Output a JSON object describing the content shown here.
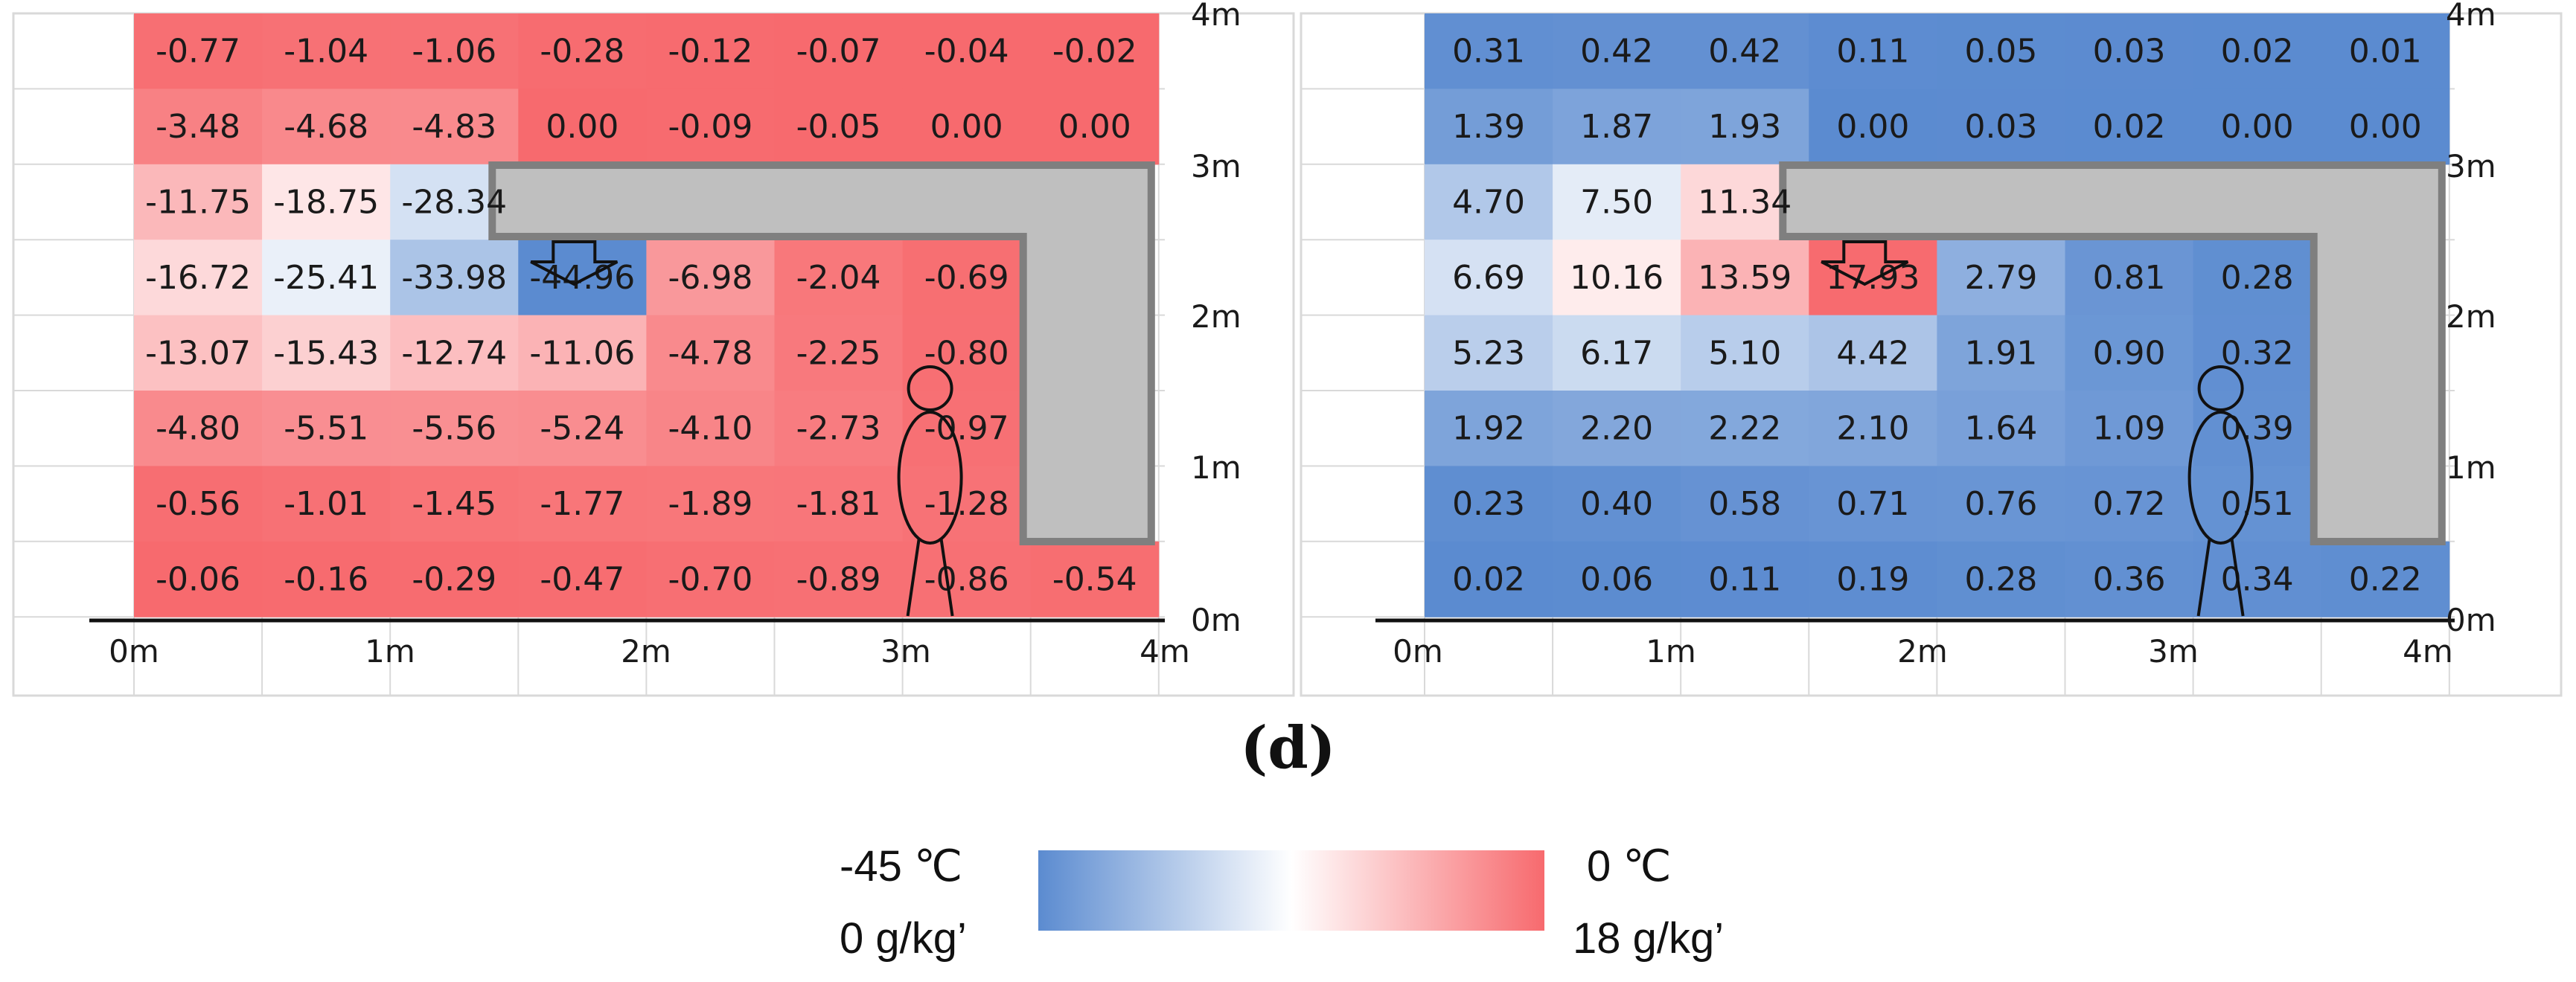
{
  "chart_data": [
    {
      "type": "heatmap",
      "name": "temperature",
      "x_tick_labels": [
        "0m",
        "1m",
        "2m",
        "3m",
        "4m"
      ],
      "y_tick_labels": [
        "0m",
        "1m",
        "2m",
        "3m",
        "4m"
      ],
      "color_range": [
        -45,
        0
      ],
      "columns_start": 0,
      "rows_top_to_bottom": [
        [
          "-0.77",
          "-1.04",
          "-1.06",
          "-0.28",
          "-0.12",
          "-0.07",
          "-0.04",
          "-0.02"
        ],
        [
          "-3.48",
          "-4.68",
          "-4.83",
          "0.00",
          "-0.09",
          "-0.05",
          "0.00",
          "0.00"
        ],
        [
          "-11.75",
          "-18.75",
          "-28.34",
          null,
          null,
          null,
          null,
          null
        ],
        [
          "-16.72",
          "-25.41",
          "-33.98",
          "-44.96",
          "-6.98",
          "-2.04",
          "-0.69",
          null
        ],
        [
          "-13.07",
          "-15.43",
          "-12.74",
          "-11.06",
          "-4.78",
          "-2.25",
          "-0.80",
          null
        ],
        [
          "-4.80",
          "-5.51",
          "-5.56",
          "-5.24",
          "-4.10",
          "-2.73",
          "-0.97",
          null
        ],
        [
          "-0.56",
          "-1.01",
          "-1.45",
          "-1.77",
          "-1.89",
          "-1.81",
          "-1.28",
          null
        ],
        [
          "-0.06",
          "-0.16",
          "-0.29",
          "-0.47",
          "-0.70",
          "-0.89",
          "-0.86",
          "-0.54"
        ]
      ]
    },
    {
      "type": "heatmap",
      "name": "humidity",
      "x_tick_labels": [
        "0m",
        "1m",
        "2m",
        "3m",
        "4m"
      ],
      "y_tick_labels": [
        "0m",
        "1m",
        "2m",
        "3m",
        "4m"
      ],
      "color_range": [
        0,
        18
      ],
      "rows_top_to_bottom": [
        [
          "0.31",
          "0.42",
          "0.42",
          "0.11",
          "0.05",
          "0.03",
          "0.02",
          "0.01"
        ],
        [
          "1.39",
          "1.87",
          "1.93",
          "0.00",
          "0.03",
          "0.02",
          "0.00",
          "0.00"
        ],
        [
          "4.70",
          "7.50",
          "11.34",
          null,
          null,
          null,
          null,
          null
        ],
        [
          "6.69",
          "10.16",
          "13.59",
          "17.93",
          "2.79",
          "0.81",
          "0.28",
          null
        ],
        [
          "5.23",
          "6.17",
          "5.10",
          "4.42",
          "1.91",
          "0.90",
          "0.32",
          null
        ],
        [
          "1.92",
          "2.20",
          "2.22",
          "2.10",
          "1.64",
          "1.09",
          "0.39",
          null
        ],
        [
          "0.23",
          "0.40",
          "0.58",
          "0.71",
          "0.76",
          "0.72",
          "0.51",
          null
        ],
        [
          "0.02",
          "0.06",
          "0.11",
          "0.19",
          "0.28",
          "0.36",
          "0.34",
          "0.22"
        ]
      ]
    }
  ],
  "panel_label": "(d)",
  "legend": {
    "min_temp": "-45 ℃",
    "min_humidity": "0 g/kg’",
    "max_temp": "0 ℃",
    "max_humidity": "18 g/kg’",
    "low_color": "#5b8bd0",
    "mid_color": "#ffffff",
    "high_color": "#f76a6e"
  }
}
